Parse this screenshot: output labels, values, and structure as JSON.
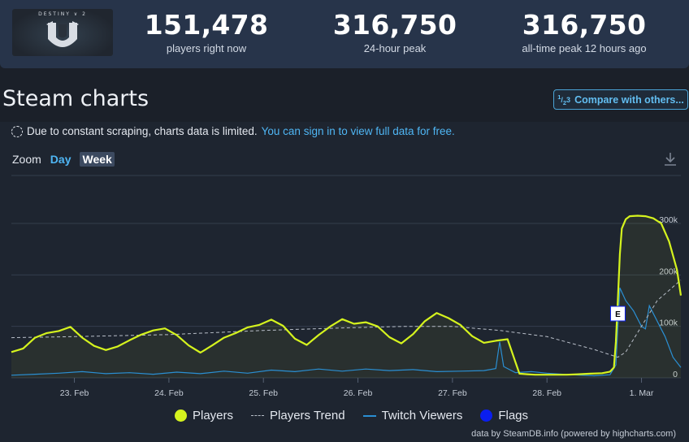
{
  "header": {
    "logo": {
      "wordmark": "DESTINY ∨ 2",
      "icon": "destiny-2-emblem-icon"
    },
    "stats": [
      {
        "value": "151,478",
        "label": "players right now"
      },
      {
        "value": "316,750",
        "label": "24-hour peak"
      },
      {
        "value": "316,750",
        "label": "all-time peak 12 hours ago"
      }
    ]
  },
  "page_title": "Steam charts",
  "compare_button": {
    "fraction_top": "1",
    "fraction_bottom": "2",
    "fraction_right": "3",
    "label": "Compare with others..."
  },
  "notice": {
    "text": "Due to constant scraping, charts data is limited.",
    "link": "You can sign in to view full data for free."
  },
  "zoom": {
    "label": "Zoom",
    "options": [
      "Day",
      "Week"
    ],
    "selected": "Week"
  },
  "legend": {
    "players": "Players",
    "trend": "Players Trend",
    "twitch": "Twitch Viewers",
    "flags": "Flags"
  },
  "credits": "data by SteamDB.info (powered by highcharts.com)",
  "colors": {
    "players": "#d5f31e",
    "trend": "#b8bec8",
    "twitch": "#2a8fd3",
    "flags": "#0a1ef0",
    "background": "#1e2530",
    "header_bg": "#27344a"
  },
  "chart_data": {
    "type": "line",
    "x_type": "datetime",
    "xlim": [
      "2025-02-22T08:00",
      "2025-03-01T10:00"
    ],
    "ylim": [
      0,
      310000
    ],
    "y_tick_labels": [
      "0",
      "100k",
      "200k",
      "300k"
    ],
    "y_ticks": [
      0,
      100000,
      200000,
      300000
    ],
    "x_tick_labels": [
      "23. Feb",
      "24. Feb",
      "25. Feb",
      "26. Feb",
      "27. Feb",
      "28. Feb",
      "1. Mar"
    ],
    "x_ticks": [
      "2025-02-23",
      "2025-02-24",
      "2025-02-25",
      "2025-02-26",
      "2025-02-27",
      "2025-02-28",
      "2025-03-01"
    ],
    "grid": true,
    "legend_position": "bottom",
    "series": [
      {
        "name": "Players",
        "x": [
          "2025-02-22T08:00",
          "2025-02-22T11:00",
          "2025-02-22T14:00",
          "2025-02-22T17:00",
          "2025-02-22T20:00",
          "2025-02-22T23:00",
          "2025-02-23T02:00",
          "2025-02-23T05:00",
          "2025-02-23T08:00",
          "2025-02-23T11:00",
          "2025-02-23T14:00",
          "2025-02-23T17:00",
          "2025-02-23T20:00",
          "2025-02-23T23:00",
          "2025-02-24T02:00",
          "2025-02-24T05:00",
          "2025-02-24T08:00",
          "2025-02-24T11:00",
          "2025-02-24T14:00",
          "2025-02-24T17:00",
          "2025-02-24T20:00",
          "2025-02-24T23:00",
          "2025-02-25T02:00",
          "2025-02-25T05:00",
          "2025-02-25T08:00",
          "2025-02-25T11:00",
          "2025-02-25T14:00",
          "2025-02-25T17:00",
          "2025-02-25T20:00",
          "2025-02-25T23:00",
          "2025-02-26T02:00",
          "2025-02-26T05:00",
          "2025-02-26T08:00",
          "2025-02-26T11:00",
          "2025-02-26T14:00",
          "2025-02-26T17:00",
          "2025-02-26T20:00",
          "2025-02-26T23:00",
          "2025-02-27T02:00",
          "2025-02-27T05:00",
          "2025-02-27T08:00",
          "2025-02-27T11:00",
          "2025-02-27T14:00",
          "2025-02-27T17:00",
          "2025-02-27T19:00",
          "2025-02-27T21:00",
          "2025-02-27T23:00",
          "2025-02-28T02:00",
          "2025-02-28T05:00",
          "2025-02-28T08:00",
          "2025-02-28T11:00",
          "2025-02-28T14:00",
          "2025-02-28T16:00",
          "2025-02-28T17:00",
          "2025-02-28T17:30",
          "2025-02-28T18:00",
          "2025-02-28T18:30",
          "2025-02-28T19:00",
          "2025-02-28T20:00",
          "2025-02-28T21:00",
          "2025-02-28T23:00",
          "2025-03-01T01:00",
          "2025-03-01T03:00",
          "2025-03-01T05:00",
          "2025-03-01T07:00",
          "2025-03-01T09:00",
          "2025-03-01T10:00"
        ],
        "y": [
          50000,
          57000,
          78000,
          87000,
          91000,
          99000,
          78000,
          62000,
          54000,
          61000,
          73000,
          84000,
          92000,
          96000,
          83000,
          63000,
          49000,
          63000,
          78000,
          87000,
          98000,
          103000,
          113000,
          101000,
          76000,
          64000,
          83000,
          100000,
          114000,
          105000,
          108000,
          100000,
          79000,
          67000,
          85000,
          110000,
          126000,
          116000,
          103000,
          81000,
          68000,
          72000,
          75000,
          8000,
          7000,
          6000,
          6000,
          6000,
          6000,
          7000,
          8000,
          9000,
          12000,
          20000,
          70000,
          150000,
          240000,
          290000,
          308000,
          314000,
          315000,
          314000,
          310000,
          300000,
          265000,
          210000,
          160000
        ]
      },
      {
        "name": "Players Trend",
        "x": [
          "2025-02-22T08:00",
          "2025-02-23T00:00",
          "2025-02-24T00:00",
          "2025-02-25T00:00",
          "2025-02-25T20:00",
          "2025-02-26T12:00",
          "2025-02-27T00:00",
          "2025-02-27T12:00",
          "2025-02-28T00:00",
          "2025-02-28T12:00",
          "2025-02-28T18:00",
          "2025-02-28T20:00",
          "2025-03-01T04:00",
          "2025-03-01T10:00"
        ],
        "y": [
          78000,
          80000,
          84000,
          92000,
          97000,
          100000,
          100000,
          92000,
          80000,
          55000,
          40000,
          50000,
          150000,
          190000
        ]
      },
      {
        "name": "Twitch Viewers",
        "x": [
          "2025-02-22T08:00",
          "2025-02-22T14:00",
          "2025-02-22T20:00",
          "2025-02-23T02:00",
          "2025-02-23T08:00",
          "2025-02-23T14:00",
          "2025-02-23T20:00",
          "2025-02-24T02:00",
          "2025-02-24T08:00",
          "2025-02-24T14:00",
          "2025-02-24T20:00",
          "2025-02-25T02:00",
          "2025-02-25T08:00",
          "2025-02-25T14:00",
          "2025-02-25T20:00",
          "2025-02-26T02:00",
          "2025-02-26T08:00",
          "2025-02-26T14:00",
          "2025-02-26T20:00",
          "2025-02-27T02:00",
          "2025-02-27T08:00",
          "2025-02-27T11:00",
          "2025-02-27T12:00",
          "2025-02-27T13:00",
          "2025-02-27T16:00",
          "2025-02-27T20:00",
          "2025-02-28T00:00",
          "2025-02-28T06:00",
          "2025-02-28T12:00",
          "2025-02-28T16:00",
          "2025-02-28T17:30",
          "2025-02-28T18:30",
          "2025-02-28T20:00",
          "2025-02-28T22:00",
          "2025-03-01T00:00",
          "2025-03-01T01:00",
          "2025-03-01T02:00",
          "2025-03-01T04:00",
          "2025-03-01T06:00",
          "2025-03-01T08:00",
          "2025-03-01T10:00"
        ],
        "y": [
          5000,
          7000,
          9000,
          12000,
          8000,
          10000,
          7000,
          11000,
          8000,
          13000,
          9000,
          15000,
          12000,
          17000,
          13000,
          17000,
          14000,
          16000,
          12000,
          13000,
          14000,
          18000,
          70000,
          22000,
          10000,
          12000,
          9000,
          6000,
          4000,
          6000,
          25000,
          175000,
          150000,
          130000,
          100000,
          95000,
          140000,
          110000,
          80000,
          40000,
          20000
        ]
      }
    ],
    "flags": [
      {
        "x": "2025-02-28T18:00",
        "label": "E"
      }
    ]
  }
}
